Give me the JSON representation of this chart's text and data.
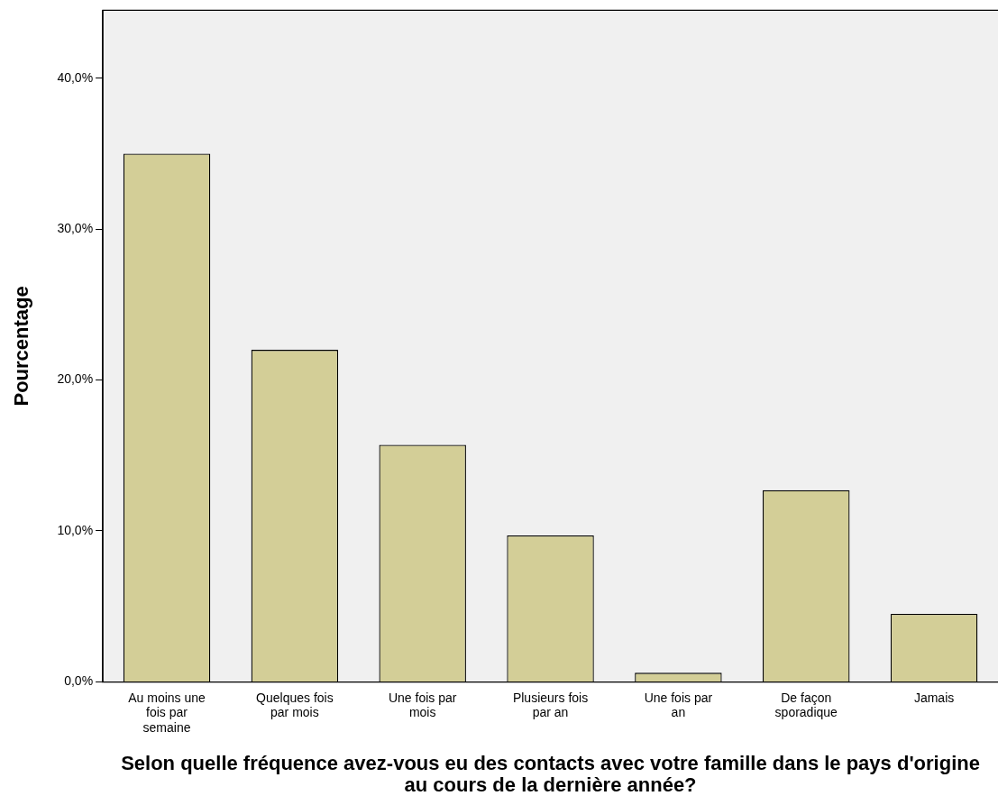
{
  "chart_data": {
    "type": "bar",
    "xlabel": "Selon quelle fréquence avez-vous eu des contacts avec votre famille dans le pays d'origine au cours de la dernière année?",
    "ylabel": "Pourcentage",
    "categories": [
      "Au moins une fois par semaine",
      "Quelques fois par mois",
      "Une fois par mois",
      "Plusieurs fois par an",
      "Une fois par an",
      "De façon sporadique",
      "Jamais"
    ],
    "values": [
      35.0,
      22.0,
      15.7,
      9.7,
      0.6,
      12.7,
      4.5
    ],
    "color": "#d3ce97",
    "ylim": [
      0,
      44.5
    ],
    "yticks": [
      {
        "value": 0,
        "label": "0,0%"
      },
      {
        "value": 10,
        "label": "10,0%"
      },
      {
        "value": 20,
        "label": "20,0%"
      },
      {
        "value": 30,
        "label": "30,0%"
      },
      {
        "value": 40,
        "label": "40,0%"
      }
    ],
    "grid": false,
    "legend": false
  }
}
